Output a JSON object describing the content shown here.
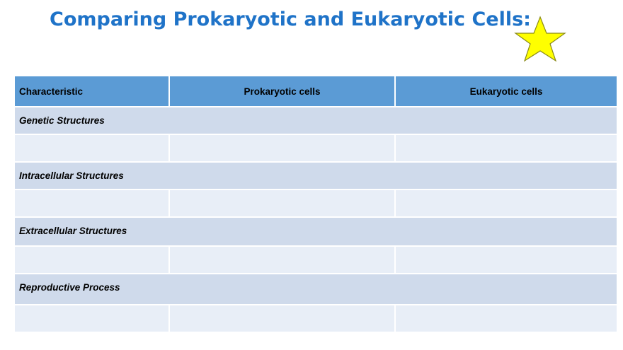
{
  "slide": {
    "title": "Comparing Prokaryotic and Eukaryotic Cells:",
    "star_icon": "star-icon",
    "star_color": "#ffff00"
  },
  "table": {
    "headers": [
      "Characteristic",
      "Prokaryotic cells",
      "Eukaryotic cells"
    ],
    "sections": [
      {
        "label": "Genetic Structures",
        "row": [
          "",
          "",
          ""
        ]
      },
      {
        "label": "Intracellular Structures",
        "row": [
          "",
          "",
          ""
        ]
      },
      {
        "label": "Extracellular Structures",
        "row": [
          "",
          "",
          ""
        ]
      },
      {
        "label": "Reproductive Process",
        "row": [
          "",
          "",
          ""
        ]
      }
    ],
    "colors": {
      "header": "#5b9bd5",
      "section": "#cfdaeb",
      "blank": "#e8eef7",
      "title": "#1f73c8"
    }
  }
}
